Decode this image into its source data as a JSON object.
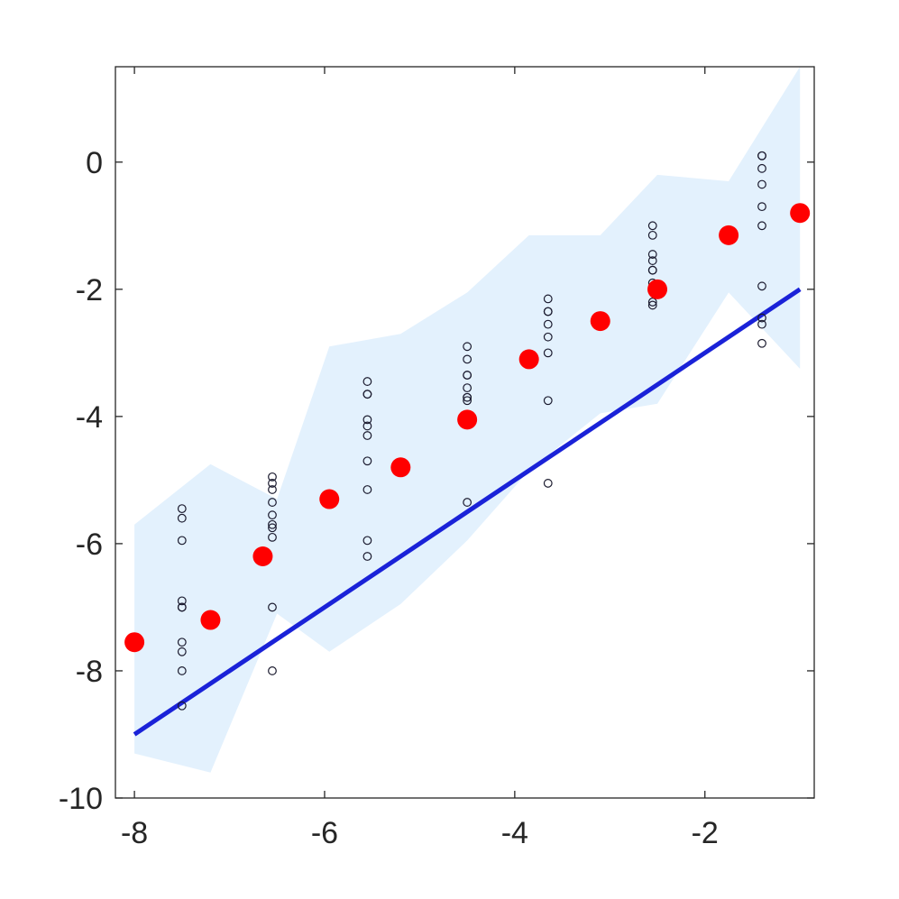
{
  "chart_data": {
    "type": "scatter",
    "title": "",
    "xlabel": "",
    "ylabel": "",
    "xlim": [
      -8.2,
      -0.85
    ],
    "ylim": [
      -10,
      1.5
    ],
    "x_ticks": [
      -8,
      -6,
      -4,
      -2
    ],
    "y_ticks": [
      0,
      -2,
      -4,
      -6,
      -8,
      -10
    ],
    "x_tick_labels": [
      "-8",
      "-6",
      "-4",
      "-2"
    ],
    "y_tick_labels": [
      "0",
      "-2",
      "-4",
      "-6",
      "-8",
      "-10"
    ],
    "grid": false,
    "legend": "none",
    "colors": {
      "band": "#e3f1fd",
      "line": "#1a22d8",
      "means": "#ff0000",
      "observations": "#1a1a2e"
    },
    "confidence_band": {
      "x": [
        -8.0,
        -7.2,
        -6.5,
        -5.95,
        -5.2,
        -4.5,
        -3.85,
        -3.1,
        -2.5,
        -1.75,
        -1.0
      ],
      "upper": [
        -5.7,
        -4.75,
        -5.3,
        -2.9,
        -2.7,
        -2.05,
        -1.15,
        -1.15,
        -0.2,
        -0.3,
        1.5
      ],
      "lower": [
        -9.3,
        -9.6,
        -7.1,
        -7.7,
        -6.95,
        -5.95,
        -4.85,
        -3.95,
        -3.8,
        -2.05,
        -3.25
      ]
    },
    "series": [
      {
        "kind": "observations",
        "x": [
          -7.5,
          -7.5,
          -7.5,
          -7.5,
          -7.5,
          -7.5,
          -7.5,
          -7.5,
          -7.5,
          -7.5,
          -6.55,
          -6.55,
          -6.55,
          -6.55,
          -6.55,
          -6.55,
          -6.55,
          -6.55,
          -6.55,
          -6.55,
          -5.55,
          -5.55,
          -5.55,
          -5.55,
          -5.55,
          -5.55,
          -5.55,
          -5.55,
          -5.55,
          -5.55,
          -4.5,
          -4.5,
          -4.5,
          -4.5,
          -4.5,
          -4.5,
          -4.5,
          -4.5,
          -4.5,
          -3.65,
          -3.65,
          -3.65,
          -3.65,
          -3.65,
          -3.65,
          -3.65,
          -3.65,
          -2.55,
          -2.55,
          -2.55,
          -2.55,
          -2.55,
          -2.55,
          -2.55,
          -2.55,
          -2.55,
          -1.4,
          -1.4,
          -1.4,
          -1.4,
          -1.4,
          -1.4,
          -1.4,
          -1.4,
          -1.4,
          -1.4
        ],
        "y": [
          -5.45,
          -5.6,
          -5.95,
          -6.9,
          -7.0,
          -7.55,
          -7.7,
          -8.0,
          -8.55,
          -7.0,
          -4.95,
          -5.05,
          -5.15,
          -5.35,
          -5.55,
          -5.7,
          -5.75,
          -5.9,
          -7.0,
          -8.0,
          -3.45,
          -3.65,
          -3.65,
          -4.05,
          -4.15,
          -4.3,
          -4.7,
          -5.15,
          -5.95,
          -6.2,
          -2.9,
          -3.1,
          -3.35,
          -3.35,
          -3.55,
          -3.7,
          -3.7,
          -3.75,
          -5.35,
          -2.15,
          -2.35,
          -2.35,
          -2.55,
          -2.75,
          -3.0,
          -3.75,
          -5.05,
          -1.0,
          -1.15,
          -1.45,
          -1.55,
          -1.7,
          -1.7,
          -1.9,
          -2.2,
          -2.25,
          0.1,
          0.1,
          -0.1,
          -0.35,
          -0.7,
          -1.0,
          -1.95,
          -2.45,
          -2.55,
          -2.85
        ]
      },
      {
        "kind": "means",
        "x": [
          -8.0,
          -7.2,
          -6.65,
          -5.95,
          -5.2,
          -4.5,
          -3.85,
          -3.1,
          -2.5,
          -1.75,
          -1.0
        ],
        "y": [
          -7.55,
          -7.2,
          -6.2,
          -5.3,
          -4.8,
          -4.05,
          -3.1,
          -2.5,
          -2.0,
          -1.15,
          -0.8
        ]
      },
      {
        "kind": "fit-line",
        "x": [
          -8.0,
          -1.0
        ],
        "y": [
          -9.0,
          -2.0
        ]
      }
    ]
  }
}
